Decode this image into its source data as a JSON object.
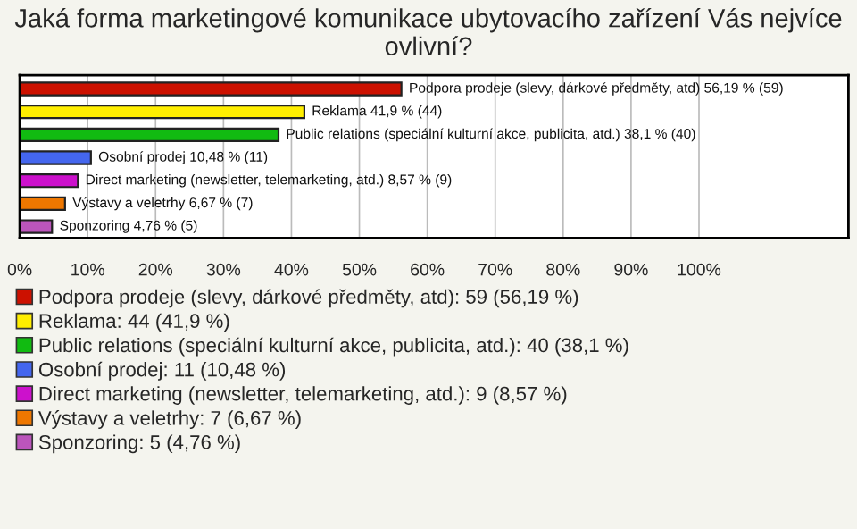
{
  "chart_data": {
    "type": "bar",
    "orientation": "horizontal",
    "title": "Jaká forma marketingové komunikace ubytovacího zařízení Vás nejvíce ovlivní?",
    "categories": [
      null,
      null,
      null,
      null,
      null,
      null,
      null
    ],
    "series": [
      {
        "name": "Podpora prodeje (slevy, dárkové předměty, atd): 59 (56,19 %)",
        "color": "#cc1100",
        "values": [
          56.19,
          null,
          null,
          null,
          null,
          null,
          null
        ],
        "value_labels": [
          "Podpora prodeje (slevy, dárkové předměty, atd) 56,19 % (59)",
          null,
          null,
          null,
          null,
          null,
          null
        ]
      },
      {
        "name": "Reklama: 44 (41,9 %)",
        "color": "#ffee00",
        "values": [
          null,
          41.9,
          null,
          null,
          null,
          null,
          null
        ],
        "value_labels": [
          null,
          "Reklama 41,9 % (44)",
          null,
          null,
          null,
          null,
          null
        ]
      },
      {
        "name": "Public relations (speciální kulturní akce, publicita, atd.): 40 (38,1 %)",
        "color": "#11bb11",
        "values": [
          null,
          null,
          38.1,
          null,
          null,
          null,
          null
        ],
        "value_labels": [
          null,
          null,
          "Public relations (speciální kulturní akce, publicita, atd.) 38,1 % (40)",
          null,
          null,
          null,
          null
        ]
      },
      {
        "name": "Osobní prodej: 11 (10,48 %)",
        "color": "#4466ee",
        "values": [
          null,
          null,
          null,
          10.48,
          null,
          null,
          null
        ],
        "value_labels": [
          null,
          null,
          null,
          "Osobní prodej 10,48 % (11)",
          null,
          null,
          null
        ]
      },
      {
        "name": "Direct marketing (newsletter, telemarketing, atd.): 9 (8,57 %)",
        "color": "#cc11cc",
        "values": [
          null,
          null,
          null,
          null,
          8.57,
          null,
          null
        ],
        "value_labels": [
          null,
          null,
          null,
          null,
          "Direct marketing (newsletter, telemarketing, atd.) 8,57 % (9)",
          null,
          null
        ]
      },
      {
        "name": "Výstavy a veletrhy: 7 (6,67 %)",
        "color": "#ee7700",
        "values": [
          null,
          null,
          null,
          null,
          null,
          6.67,
          null
        ],
        "value_labels": [
          null,
          null,
          null,
          null,
          null,
          "Výstavy a veletrhy 6,67 % (7)",
          null
        ]
      },
      {
        "name": "Sponzoring: 5 (4,76 %)",
        "color": "#bb55bb",
        "values": [
          null,
          null,
          null,
          null,
          null,
          null,
          4.76
        ],
        "value_labels": [
          null,
          null,
          null,
          null,
          null,
          null,
          "Sponzoring 4,76 % (5)"
        ]
      }
    ],
    "xlim": [
      0,
      122
    ],
    "xticks": [
      {
        "value": 0,
        "label": "0%"
      },
      {
        "value": 10,
        "label": "10%"
      },
      {
        "value": 20,
        "label": "20%"
      },
      {
        "value": 30,
        "label": "30%"
      },
      {
        "value": 40,
        "label": "40%"
      },
      {
        "value": 50,
        "label": "50%"
      },
      {
        "value": 60,
        "label": "60%"
      },
      {
        "value": 70,
        "label": "70%"
      },
      {
        "value": 80,
        "label": "80%"
      },
      {
        "value": 90,
        "label": "90%"
      },
      {
        "value": 100,
        "label": "100%"
      }
    ],
    "grid": "x",
    "legend": "bottom"
  }
}
